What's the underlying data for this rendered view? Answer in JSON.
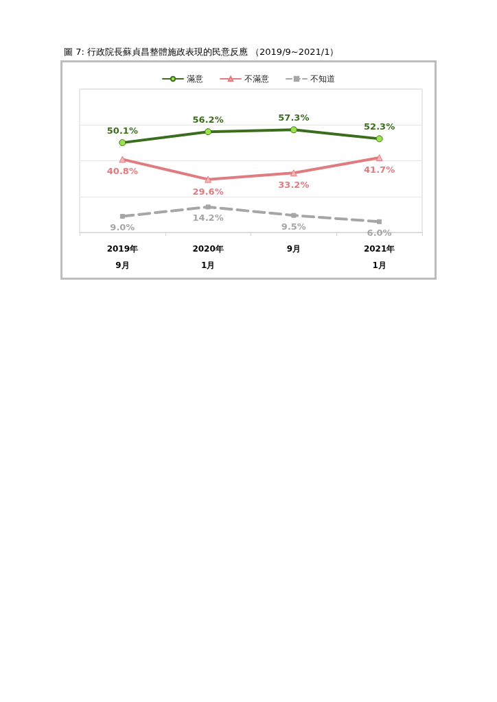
{
  "chart_data": {
    "type": "line",
    "title": "圖 7: 行政院長蘇貞昌整體施政表現的民意反應 （2019/9~2021/1）",
    "categories": [
      "2019年\n9月",
      "2020年\n1月",
      "9月",
      "2021年\n1月"
    ],
    "series": [
      {
        "name": "滿意",
        "color": "#3b6e1c",
        "values": [
          50.1,
          56.2,
          57.3,
          52.3
        ],
        "value_labels": [
          "50.1%",
          "56.2%",
          "57.3%",
          "52.3%"
        ],
        "marker": "circle",
        "line_style": "solid"
      },
      {
        "name": "不滿意",
        "color": "#e07b80",
        "values": [
          40.8,
          29.6,
          33.2,
          41.7
        ],
        "value_labels": [
          "40.8%",
          "29.6%",
          "33.2%",
          "41.7%"
        ],
        "marker": "triangle",
        "line_style": "solid"
      },
      {
        "name": "不知道",
        "color": "#a6a6a6",
        "values": [
          9.0,
          14.2,
          9.5,
          6.0
        ],
        "value_labels": [
          "9.0%",
          "14.2%",
          "9.5%",
          "6.0%"
        ],
        "marker": "square",
        "line_style": "dashed"
      }
    ],
    "ylim": [
      0,
      80
    ],
    "yticks": [
      {
        "value": 0,
        "label": null
      },
      {
        "value": 20,
        "label": null
      },
      {
        "value": 40,
        "label": null
      },
      {
        "value": 60,
        "label": null
      },
      {
        "value": 80,
        "label": null
      }
    ],
    "tick_labels": "x",
    "grid": "y",
    "legend": "top"
  }
}
